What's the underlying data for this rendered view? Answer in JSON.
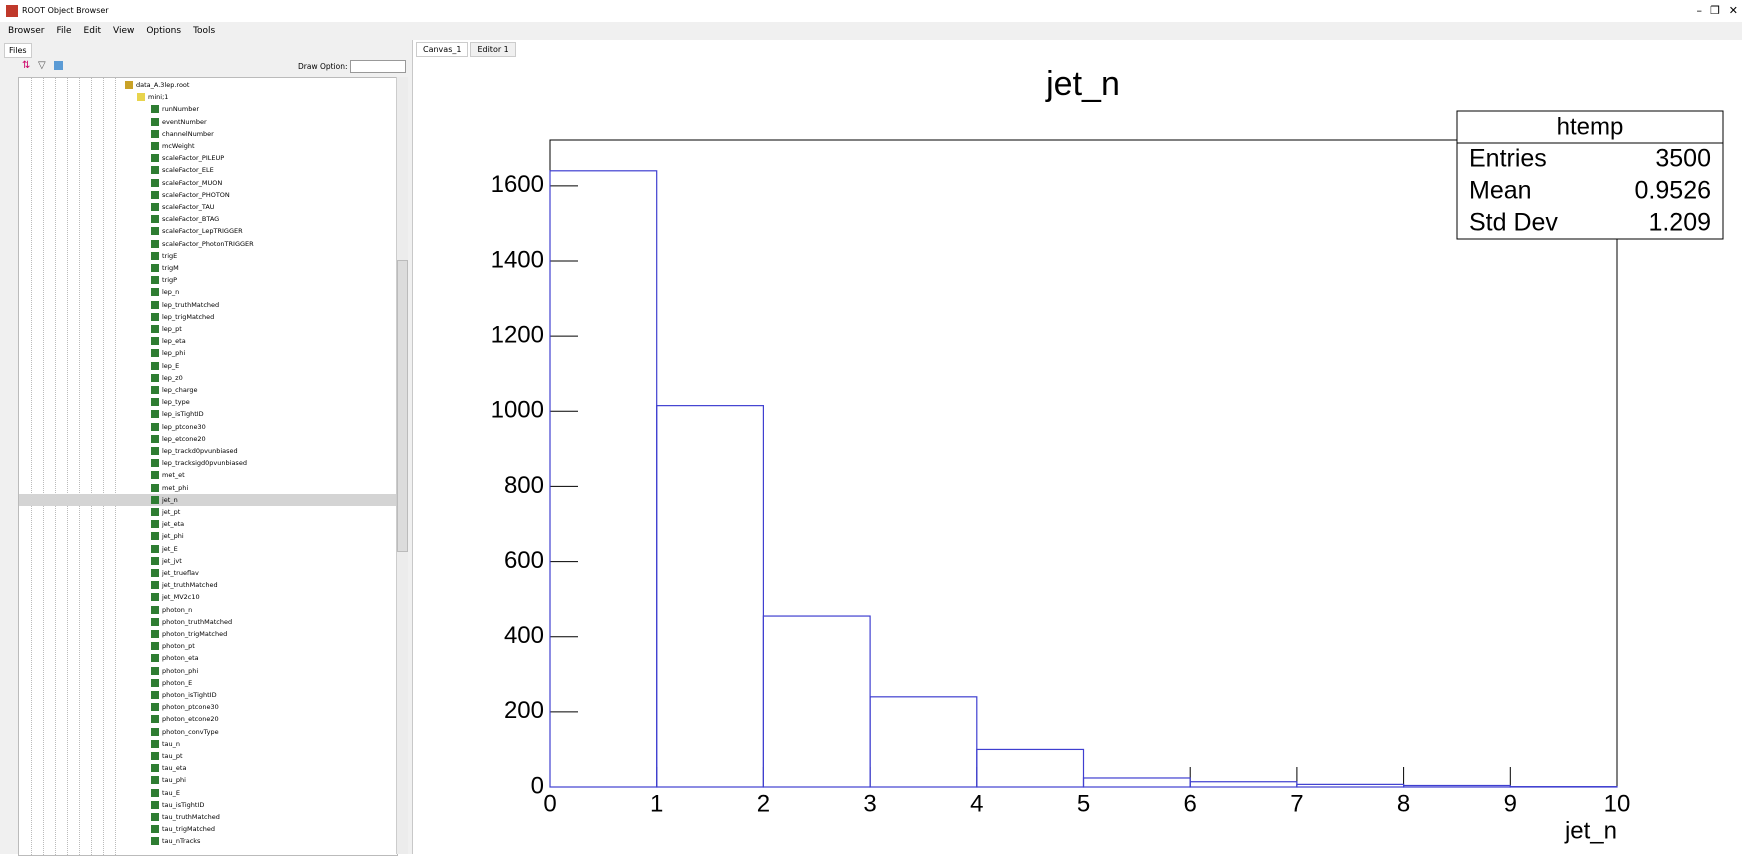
{
  "window": {
    "title": "ROOT Object Browser",
    "menu": [
      "Browser",
      "File",
      "Edit",
      "View",
      "Options",
      "Tools"
    ]
  },
  "browser": {
    "tab": "Files",
    "draw_option_label": "Draw Option:",
    "tree": {
      "file": "data_A.3lep.root",
      "tree": "mini;1",
      "selected": 32,
      "leaves": [
        "runNumber",
        "eventNumber",
        "channelNumber",
        "mcWeight",
        "scaleFactor_PILEUP",
        "scaleFactor_ELE",
        "scaleFactor_MUON",
        "scaleFactor_PHOTON",
        "scaleFactor_TAU",
        "scaleFactor_BTAG",
        "scaleFactor_LepTRIGGER",
        "scaleFactor_PhotonTRIGGER",
        "trigE",
        "trigM",
        "trigP",
        "lep_n",
        "lep_truthMatched",
        "lep_trigMatched",
        "lep_pt",
        "lep_eta",
        "lep_phi",
        "lep_E",
        "lep_z0",
        "lep_charge",
        "lep_type",
        "lep_isTightID",
        "lep_ptcone30",
        "lep_etcone20",
        "lep_trackd0pvunbiased",
        "lep_tracksigd0pvunbiased",
        "met_et",
        "met_phi",
        "jet_n",
        "jet_pt",
        "jet_eta",
        "jet_phi",
        "jet_E",
        "jet_jvt",
        "jet_trueflav",
        "jet_truthMatched",
        "jet_MV2c10",
        "photon_n",
        "photon_truthMatched",
        "photon_trigMatched",
        "photon_pt",
        "photon_eta",
        "photon_phi",
        "photon_E",
        "photon_isTightID",
        "photon_ptcone30",
        "photon_etcone20",
        "photon_convType",
        "tau_n",
        "tau_pt",
        "tau_eta",
        "tau_phi",
        "tau_E",
        "tau_isTightID",
        "tau_truthMatched",
        "tau_trigMatched",
        "tau_nTracks"
      ]
    }
  },
  "tabs": [
    "Canvas_1",
    "Editor 1"
  ],
  "chart_data": {
    "type": "histogram",
    "title": "jet_n",
    "x_label": "jet_n",
    "bins": [
      0,
      1,
      2,
      3,
      4,
      5,
      6,
      7,
      8,
      9,
      10
    ],
    "values": [
      1640,
      1015,
      455,
      240,
      100,
      24,
      14,
      7,
      4,
      1
    ],
    "color": "#3f3fd0",
    "xlim": [
      0,
      10
    ],
    "ylim": [
      0,
      1722
    ],
    "xticks": [
      0,
      1,
      2,
      3,
      4,
      5,
      6,
      7,
      8,
      9,
      10
    ],
    "yticks": [
      0,
      200,
      400,
      600,
      800,
      1000,
      1200,
      1400,
      1600
    ],
    "stats": {
      "title": "htemp",
      "rows": [
        {
          "label": "Entries",
          "value": 3500
        },
        {
          "label": "Mean",
          "value": 0.9526
        },
        {
          "label": "Std Dev",
          "value": 1.209
        }
      ]
    }
  }
}
